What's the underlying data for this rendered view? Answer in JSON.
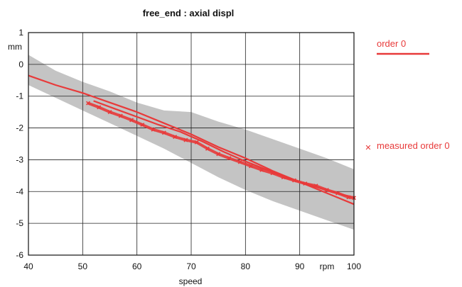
{
  "chart_data": {
    "type": "line",
    "title": "free_end :  axial displ",
    "xlabel": "speed",
    "x_unit": "rpm",
    "ylabel": "mm",
    "xlim": [
      40,
      100
    ],
    "ylim": [
      -6,
      1
    ],
    "x_ticks": [
      "40",
      "50",
      "60",
      "70",
      "80",
      "90",
      "100"
    ],
    "y_ticks": [
      "1",
      "0",
      "-1",
      "-2",
      "-3",
      "-4",
      "-5",
      "-6"
    ],
    "grid": true,
    "legend": [
      {
        "label": "order 0",
        "marker": "line"
      },
      {
        "label": "measured  order 0",
        "marker": "x"
      }
    ],
    "colors": {
      "series": "#e83a3a",
      "band": "#c4c4c4",
      "grid": "#222222"
    },
    "band": {
      "x": [
        40,
        45,
        50,
        55,
        60,
        65,
        70,
        75,
        80,
        85,
        90,
        95,
        100
      ],
      "upper": [
        0.3,
        -0.2,
        -0.55,
        -0.85,
        -1.2,
        -1.45,
        -1.5,
        -1.8,
        -2.05,
        -2.35,
        -2.65,
        -2.95,
        -3.3
      ],
      "lower": [
        -0.65,
        -1.05,
        -1.45,
        -1.85,
        -2.25,
        -2.65,
        -3.1,
        -3.55,
        -3.95,
        -4.3,
        -4.6,
        -4.9,
        -5.2
      ]
    },
    "series": [
      {
        "name": "order 0",
        "style": "line",
        "x": [
          40,
          45,
          50,
          55,
          60,
          65,
          70,
          75,
          80,
          85,
          90,
          95,
          100
        ],
        "y": [
          -0.35,
          -0.65,
          -0.9,
          -1.2,
          -1.5,
          -1.85,
          -2.2,
          -2.6,
          -2.95,
          -3.35,
          -3.7,
          -4.05,
          -4.4
        ]
      },
      {
        "name": "measured  order 0",
        "style": "markers",
        "x": [
          51,
          53,
          55,
          57,
          59,
          61,
          63,
          65,
          67,
          69,
          71,
          73,
          75,
          77,
          79,
          81,
          83,
          85,
          87,
          89,
          91,
          93,
          95,
          97,
          99,
          100
        ],
        "y": [
          -1.22,
          -1.35,
          -1.5,
          -1.62,
          -1.75,
          -1.9,
          -2.05,
          -2.15,
          -2.28,
          -2.38,
          -2.45,
          -2.65,
          -2.82,
          -2.95,
          -3.07,
          -3.2,
          -3.32,
          -3.42,
          -3.55,
          -3.65,
          -3.75,
          -3.82,
          -3.95,
          -4.05,
          -4.18,
          -4.2
        ]
      },
      {
        "name": "measured  order 0",
        "style": "line",
        "x": [
          52,
          56,
          60,
          64,
          68,
          72,
          76,
          80,
          84,
          88,
          92,
          96,
          100
        ],
        "y": [
          -1.15,
          -1.4,
          -1.65,
          -1.9,
          -2.12,
          -2.42,
          -2.75,
          -3.05,
          -3.32,
          -3.6,
          -3.8,
          -4.02,
          -4.18
        ]
      }
    ]
  }
}
